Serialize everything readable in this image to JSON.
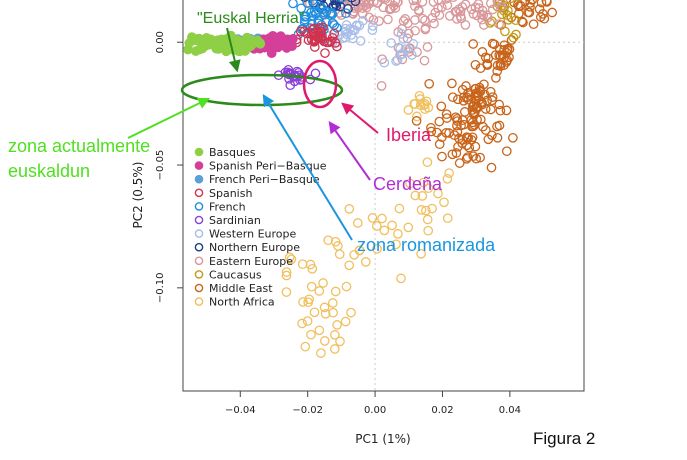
{
  "chart_data": {
    "type": "scatter",
    "title": "",
    "xlabel": "PC1 (1%)",
    "ylabel": "PC2 (0.5%)",
    "xlim": [
      -0.057,
      0.062
    ],
    "ylim": [
      -0.142,
      0.018
    ],
    "x_ticks": [
      {
        "value": -0.04,
        "label": "−0.04"
      },
      {
        "value": -0.02,
        "label": "−0.02"
      },
      {
        "value": 0.0,
        "label": "0.00"
      },
      {
        "value": 0.02,
        "label": "0.02"
      },
      {
        "value": 0.04,
        "label": "0.04"
      }
    ],
    "y_ticks": [
      {
        "value": 0.0,
        "label": "0.00"
      },
      {
        "value": -0.05,
        "label": "−0.05"
      },
      {
        "value": -0.1,
        "label": "−0.10"
      }
    ],
    "grid": "dotted at zero",
    "legend_position": "bottom-left",
    "series": [
      {
        "name": "Basques",
        "color": "#8fcf45",
        "filled": true,
        "clusters": [
          {
            "cx": -0.046,
            "cy": -0.0008,
            "sx": 0.005,
            "sy": 0.0015,
            "n": 95
          }
        ]
      },
      {
        "name": "Spanish Peri−Basque",
        "color": "#d43f9a",
        "filled": true,
        "clusters": [
          {
            "cx": -0.03,
            "cy": -0.0002,
            "sx": 0.0035,
            "sy": 0.0015,
            "n": 55
          }
        ]
      },
      {
        "name": "French Peri−Basque",
        "color": "#5aa0d8",
        "filled": true,
        "clusters": [
          {
            "cx": -0.036,
            "cy": 0.0,
            "sx": 0.003,
            "sy": 0.0012,
            "n": 30
          }
        ]
      },
      {
        "name": "Spanish",
        "color": "#d0324f",
        "filled": false,
        "clusters": [
          {
            "cx": -0.017,
            "cy": 0.001,
            "sx": 0.003,
            "sy": 0.003,
            "n": 40
          }
        ]
      },
      {
        "name": "French",
        "color": "#1e8fe0",
        "filled": false,
        "clusters": [
          {
            "cx": -0.018,
            "cy": 0.01,
            "sx": 0.004,
            "sy": 0.004,
            "n": 40
          }
        ]
      },
      {
        "name": "Sardinian",
        "color": "#8a3fd6",
        "filled": false,
        "clusters": [
          {
            "cx": -0.024,
            "cy": -0.0135,
            "sx": 0.002,
            "sy": 0.001,
            "n": 22
          }
        ]
      },
      {
        "name": "Western Europe",
        "color": "#a8bde8",
        "filled": false,
        "clusters": [
          {
            "cx": -0.006,
            "cy": 0.004,
            "sx": 0.004,
            "sy": 0.002,
            "n": 22
          },
          {
            "cx": 0.007,
            "cy": -0.003,
            "sx": 0.003,
            "sy": 0.004,
            "n": 12
          }
        ]
      },
      {
        "name": "Northern Europe",
        "color": "#1a3d8c",
        "filled": false,
        "clusters": [
          {
            "cx": -0.012,
            "cy": 0.019,
            "sx": 0.004,
            "sy": 0.003,
            "n": 35
          }
        ]
      },
      {
        "name": "Eastern Europe",
        "color": "#d9979a",
        "filled": false,
        "clusters": [
          {
            "cx": -0.003,
            "cy": 0.016,
            "sx": 0.008,
            "sy": 0.004,
            "n": 75
          },
          {
            "cx": 0.025,
            "cy": 0.012,
            "sx": 0.008,
            "sy": 0.003,
            "n": 45
          },
          {
            "cx": 0.011,
            "cy": 0.0,
            "sx": 0.004,
            "sy": 0.007,
            "n": 25
          }
        ]
      },
      {
        "name": "Caucasus",
        "color": "#c19a16",
        "filled": false,
        "clusters": [
          {
            "cx": 0.042,
            "cy": 0.023,
            "sx": 0.005,
            "sy": 0.002,
            "n": 35
          },
          {
            "cx": 0.039,
            "cy": 0.009,
            "sx": 0.003,
            "sy": 0.004,
            "n": 14
          }
        ]
      },
      {
        "name": "Middle East",
        "color": "#c8641a",
        "filled": false,
        "clusters": [
          {
            "cx": 0.045,
            "cy": 0.013,
            "sx": 0.004,
            "sy": 0.004,
            "n": 30
          },
          {
            "cx": 0.036,
            "cy": -0.005,
            "sx": 0.003,
            "sy": 0.004,
            "n": 30
          },
          {
            "cx": 0.03,
            "cy": -0.025,
            "sx": 0.004,
            "sy": 0.007,
            "n": 70
          },
          {
            "cx": 0.028,
            "cy": -0.043,
            "sx": 0.004,
            "sy": 0.005,
            "n": 25
          },
          {
            "cx": 0.021,
            "cy": -0.033,
            "sx": 0.003,
            "sy": 0.004,
            "n": 15
          }
        ]
      },
      {
        "name": "North Africa",
        "color": "#f0c060",
        "filled": false,
        "clusters": [
          {
            "cx": 0.014,
            "cy": -0.026,
            "sx": 0.002,
            "sy": 0.003,
            "n": 12
          },
          {
            "cx": 0.017,
            "cy": -0.061,
            "sx": 0.004,
            "sy": 0.006,
            "n": 14
          },
          {
            "cx": 0.002,
            "cy": -0.08,
            "sx": 0.008,
            "sy": 0.008,
            "n": 25
          },
          {
            "cx": -0.016,
            "cy": -0.113,
            "sx": 0.005,
            "sy": 0.009,
            "n": 28
          },
          {
            "cx": -0.025,
            "cy": -0.09,
            "sx": 0.003,
            "sy": 0.004,
            "n": 6
          }
        ]
      }
    ],
    "annotations": [
      {
        "text": "\"Euskal Herria\"",
        "color": "#2a8a1a",
        "target": "Basques cluster (ellipse)"
      },
      {
        "text": "zona actualmente euskaldun",
        "color": "#4fe021",
        "target": "Basques"
      },
      {
        "text": "Iberia",
        "color": "#e0186e",
        "target": "Spanish cluster (ellipse)"
      },
      {
        "text": "Cerdeña",
        "color": "#b12ed6",
        "target": "Sardinian"
      },
      {
        "text": "zona romanizada",
        "color": "#1a96e0",
        "target": "French Peri-Basque"
      }
    ]
  },
  "labels": {
    "euskal": "\"Euskal Herria\"",
    "zona_line1": "zona actualmente",
    "zona_line2": "euskaldun",
    "iberia": "Iberia",
    "cerdena": "Cerdeña",
    "romanizada": "zona romanizada",
    "figura": "Figura 2"
  }
}
